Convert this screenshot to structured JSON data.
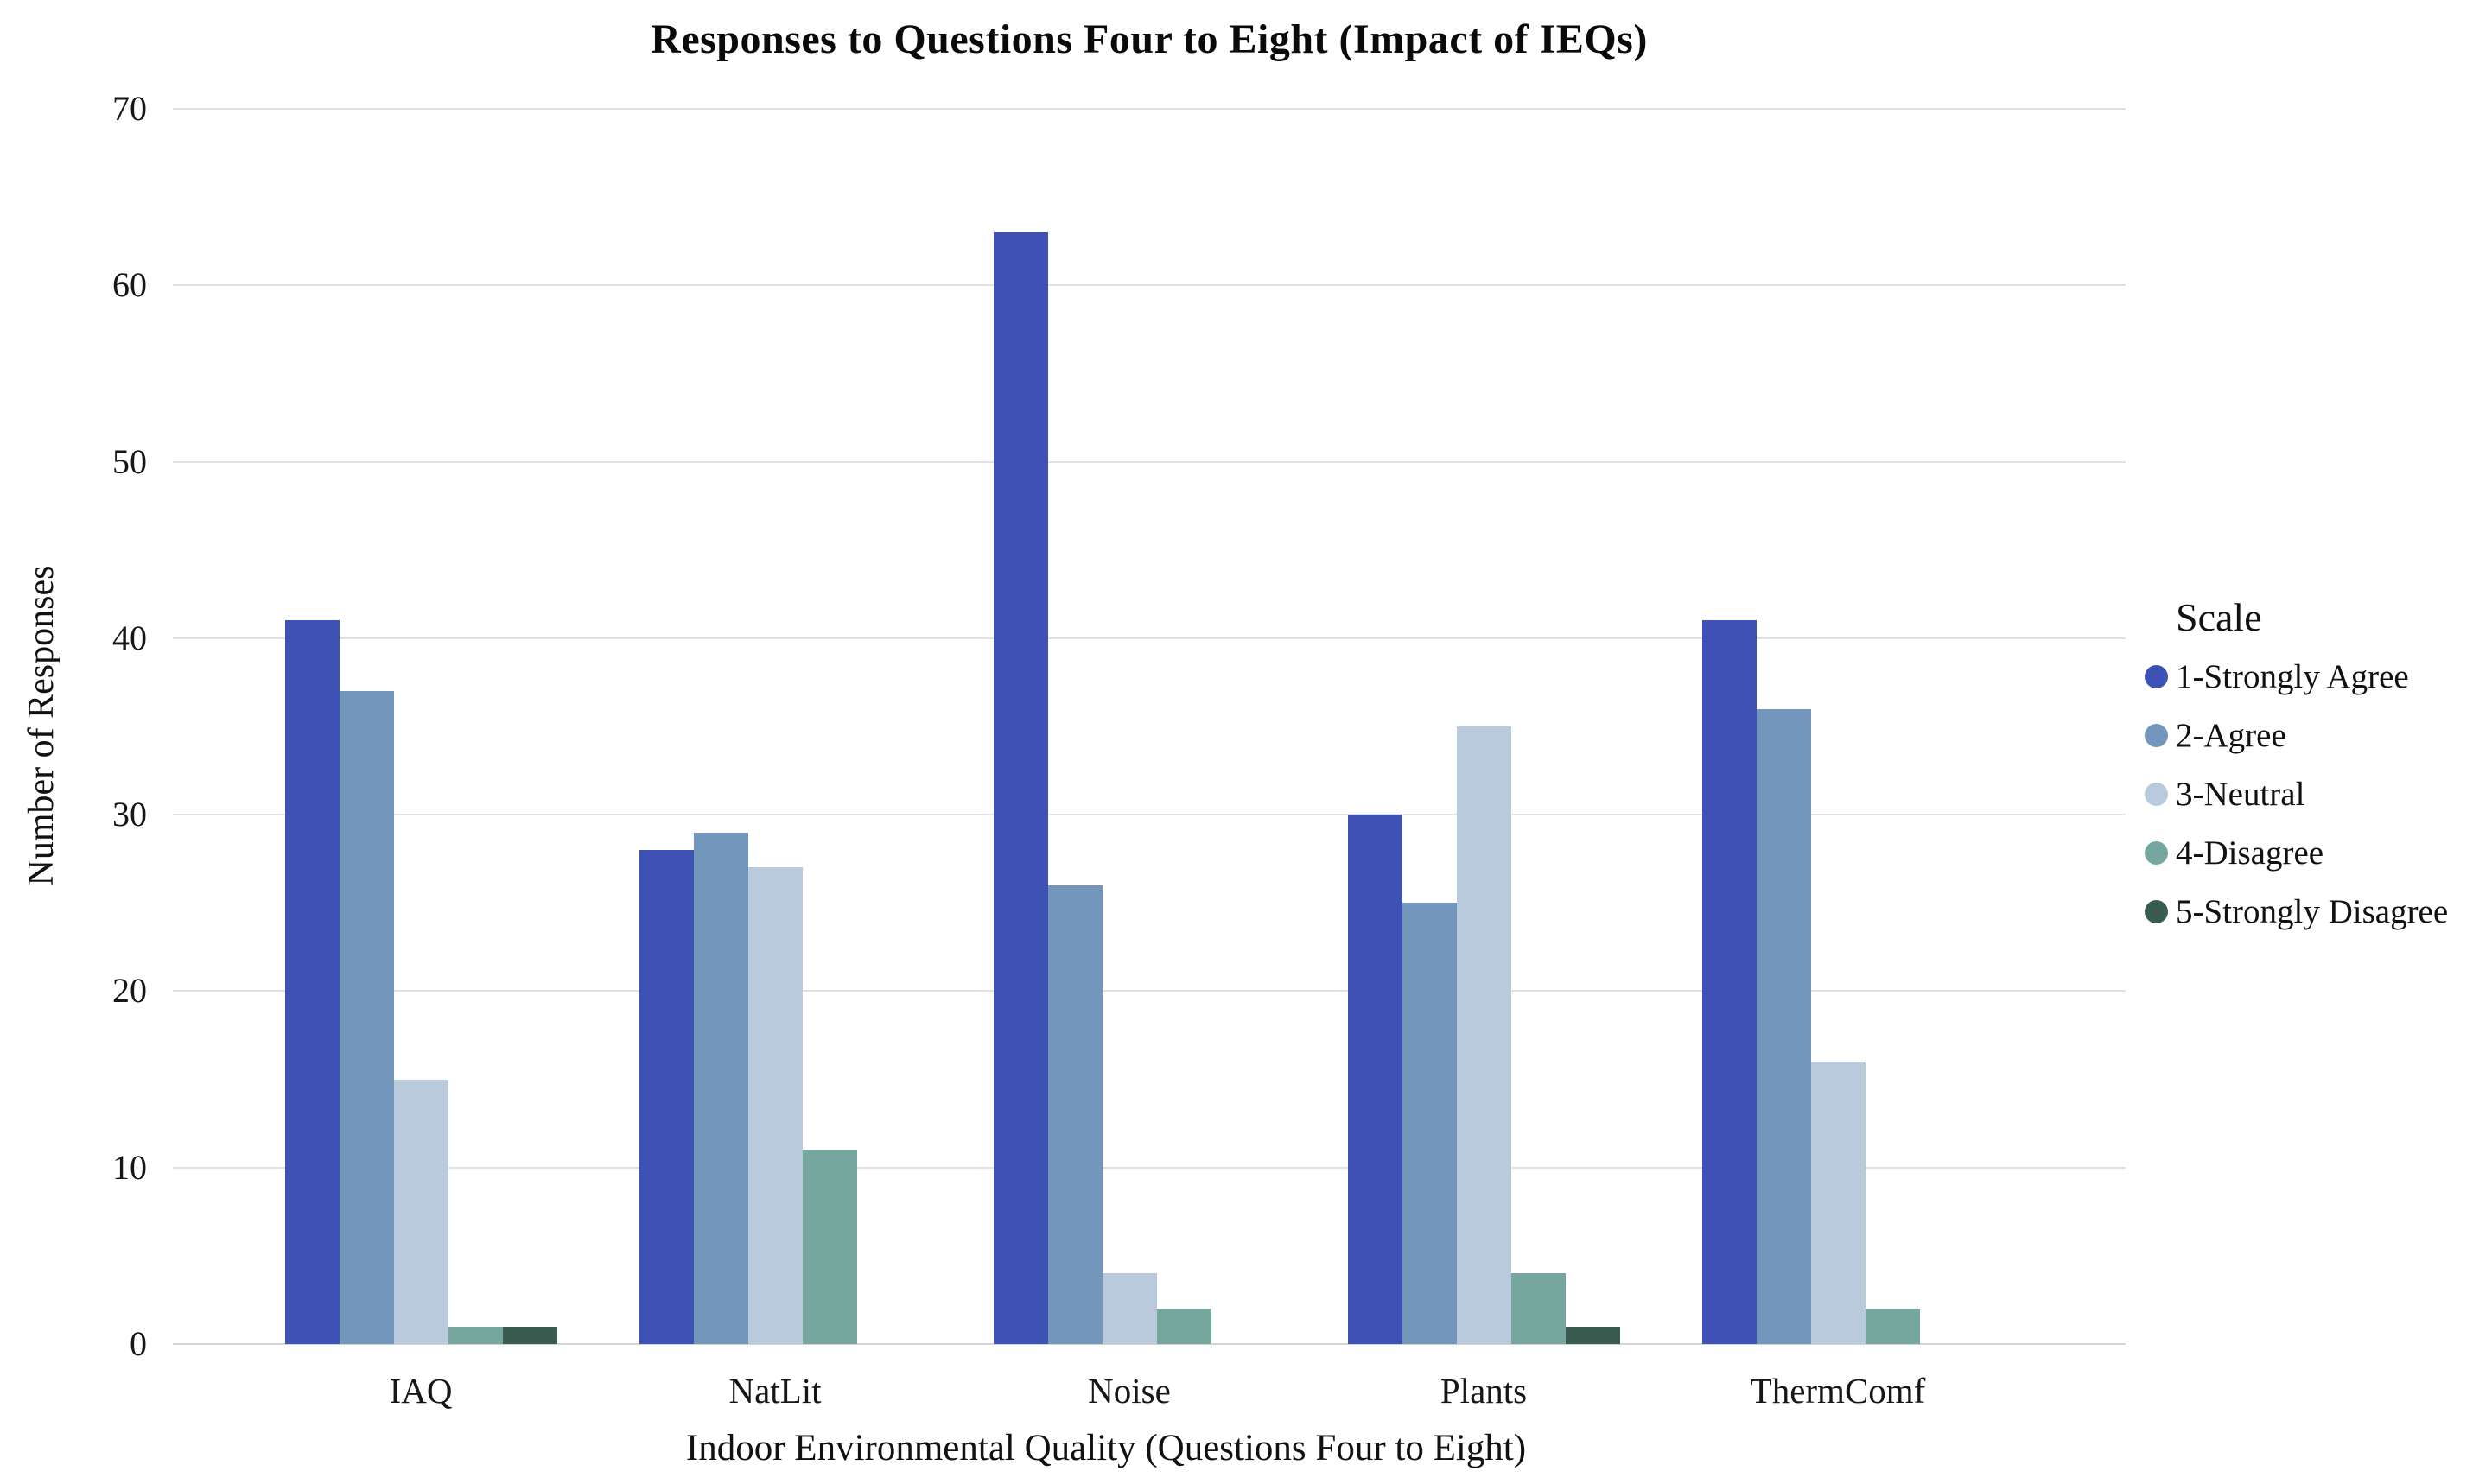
{
  "chart_data": {
    "type": "bar",
    "title": "Responses to Questions Four to Eight (Impact of IEQs)",
    "xlabel": "Indoor Environmental Quality (Questions Four to Eight)",
    "ylabel": "Number of Responses",
    "categories": [
      "IAQ",
      "NatLit",
      "Noise",
      "Plants",
      "ThermComf"
    ],
    "series": [
      {
        "name": "1-Strongly Agree",
        "color": "#3e51b4",
        "values": [
          41,
          28,
          63,
          30,
          41
        ]
      },
      {
        "name": "2-Agree",
        "color": "#7296bc",
        "values": [
          37,
          29,
          26,
          25,
          36
        ]
      },
      {
        "name": "3-Neutral",
        "color": "#b9cadc",
        "values": [
          15,
          27,
          4,
          35,
          16
        ]
      },
      {
        "name": "4-Disagree",
        "color": "#76a79e",
        "values": [
          1,
          11,
          2,
          4,
          2
        ]
      },
      {
        "name": "5-Strongly Disagree",
        "color": "#3a5b50",
        "values": [
          1,
          0,
          0,
          1,
          0
        ]
      }
    ],
    "ylim": [
      0,
      70
    ],
    "yticks": [
      0,
      10,
      20,
      30,
      40,
      50,
      60,
      70
    ],
    "grid": "horizontal",
    "legend": {
      "title": "Scale",
      "position": "right"
    }
  }
}
